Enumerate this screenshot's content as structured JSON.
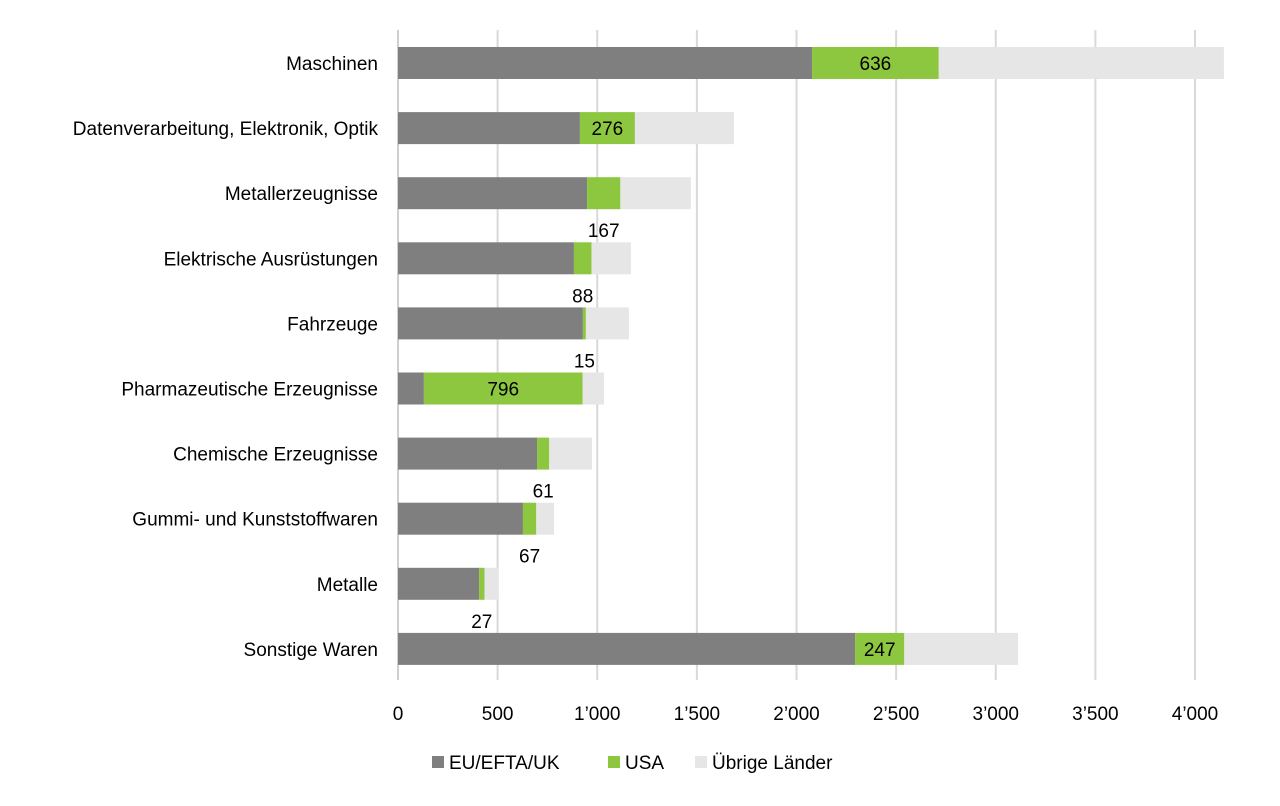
{
  "chart_data": {
    "type": "bar",
    "orientation": "horizontal",
    "stacked": true,
    "title": "",
    "xlabel": "",
    "ylabel": "",
    "xlim": [
      0,
      4000
    ],
    "x_ticks": [
      0,
      500,
      1000,
      1500,
      2000,
      2500,
      3000,
      3500,
      4000
    ],
    "x_tick_labels": [
      "0",
      "500",
      "1’000",
      "1’500",
      "2’000",
      "2’500",
      "3’000",
      "3’500",
      "4’000"
    ],
    "grid": "vertical",
    "legend_position": "bottom",
    "categories": [
      "Maschinen",
      "Datenverarbeitung, Elektronik, Optik",
      "Metallerzeugnisse",
      "Elektrische Ausrüstungen",
      "Fahrzeuge",
      "Pharmazeutische Erzeugnisse",
      "Chemische Erzeugnisse",
      "Gummi- und Kunststoffwaren",
      "Metalle",
      "Sonstige Waren"
    ],
    "series": [
      {
        "name": "EU/EFTA/UK",
        "color": "#7f7f7f",
        "values": [
          2078,
          913,
          949,
          883,
          928,
          130,
          698,
          627,
          407,
          2294
        ]
      },
      {
        "name": "USA",
        "color": "#8dc63f",
        "values": [
          636,
          276,
          167,
          88,
          15,
          796,
          61,
          67,
          27,
          247
        ],
        "data_labels": [
          "636",
          "276",
          "167",
          "88",
          "15",
          "796",
          "61",
          "67",
          "27",
          "247"
        ]
      },
      {
        "name": "Übrige Länder",
        "color": "#e6e6e6",
        "values": [
          1431,
          497,
          354,
          198,
          216,
          108,
          215,
          89,
          68,
          571
        ]
      }
    ]
  }
}
